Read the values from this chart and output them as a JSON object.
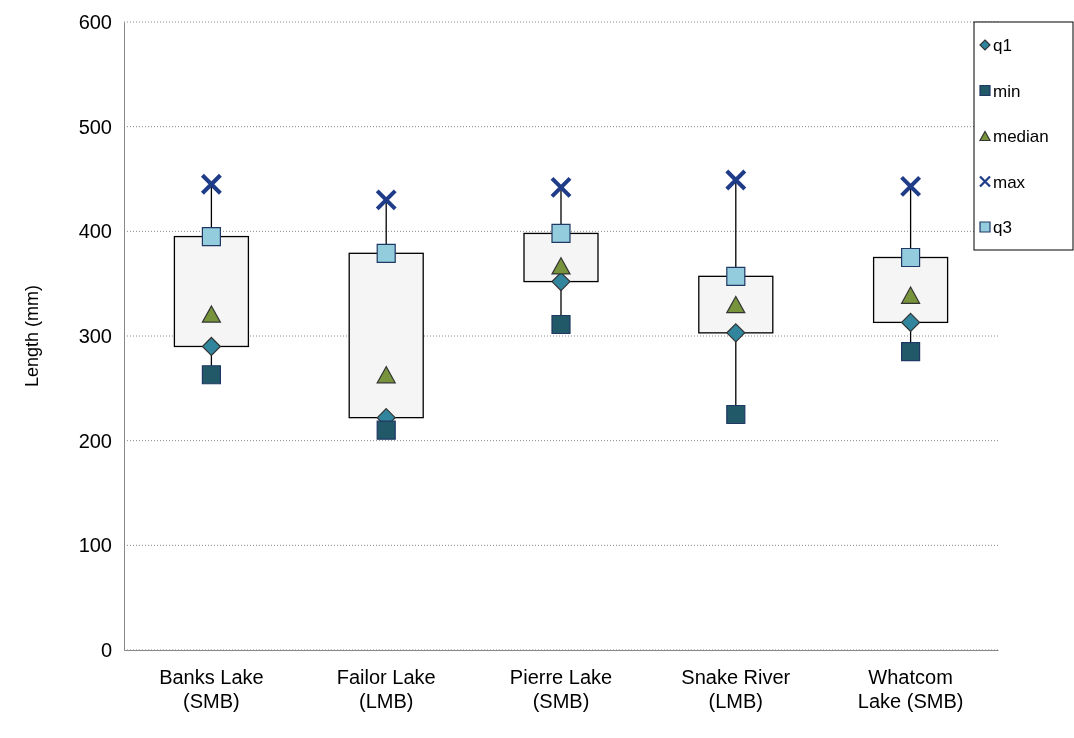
{
  "chart_data": {
    "type": "box",
    "ylabel": "Length (mm)",
    "categories": [
      "Banks Lake\n(SMB)",
      "Failor Lake\n(LMB)",
      "Pierre Lake\n(SMB)",
      "Snake River\n(LMB)",
      "Whatcom\nLake (SMB)"
    ],
    "ylim": [
      0,
      600
    ],
    "yticks": [
      0,
      100,
      200,
      300,
      400,
      500,
      600
    ],
    "grid": "y",
    "legend": "top right",
    "boxes": [
      {
        "low": 263,
        "q1": 290,
        "q3": 395,
        "high": 445
      },
      {
        "low": 210,
        "q1": 222,
        "q3": 379,
        "high": 430
      },
      {
        "low": 311,
        "q1": 352,
        "q3": 398,
        "high": 442
      },
      {
        "low": 225,
        "q1": 303,
        "q3": 357,
        "high": 449
      },
      {
        "low": 285,
        "q1": 313,
        "q3": 375,
        "high": 443
      }
    ],
    "series": [
      {
        "name": "q1",
        "type": "scatter",
        "marker": "diamond",
        "color": "#31859c",
        "x": [
          "Banks Lake\n(SMB)",
          "Failor Lake\n(LMB)",
          "Pierre Lake\n(SMB)",
          "Snake River\n(LMB)",
          "Whatcom\nLake (SMB)"
        ],
        "values": [
          290,
          222,
          352,
          303,
          313
        ]
      },
      {
        "name": "min",
        "type": "scatter",
        "marker": "square",
        "color": "#215968",
        "x": [
          "Banks Lake\n(SMB)",
          "Failor Lake\n(LMB)",
          "Pierre Lake\n(SMB)",
          "Snake River\n(LMB)",
          "Whatcom\nLake (SMB)"
        ],
        "values": [
          263,
          210,
          311,
          225,
          285
        ]
      },
      {
        "name": "median",
        "type": "scatter",
        "marker": "triangle",
        "color": "#77933c",
        "x": [
          "Banks Lake\n(SMB)",
          "Failor Lake\n(LMB)",
          "Pierre Lake\n(SMB)",
          "Snake River\n(LMB)",
          "Whatcom\nLake (SMB)"
        ],
        "values": [
          321,
          263,
          367,
          330,
          339
        ]
      },
      {
        "name": "max",
        "type": "scatter",
        "marker": "cross",
        "color": "#1f3c88",
        "x": [
          "Banks Lake\n(SMB)",
          "Failor Lake\n(LMB)",
          "Pierre Lake\n(SMB)",
          "Snake River\n(LMB)",
          "Whatcom\nLake (SMB)"
        ],
        "values": [
          445,
          430,
          442,
          449,
          443
        ]
      },
      {
        "name": "q3",
        "type": "scatter",
        "marker": "square",
        "color": "#93cddd",
        "x": [
          "Banks Lake\n(SMB)",
          "Failor Lake\n(LMB)",
          "Pierre Lake\n(SMB)",
          "Snake River\n(LMB)",
          "Whatcom\nLake (SMB)"
        ],
        "values": [
          395,
          379,
          398,
          357,
          375
        ]
      }
    ]
  }
}
